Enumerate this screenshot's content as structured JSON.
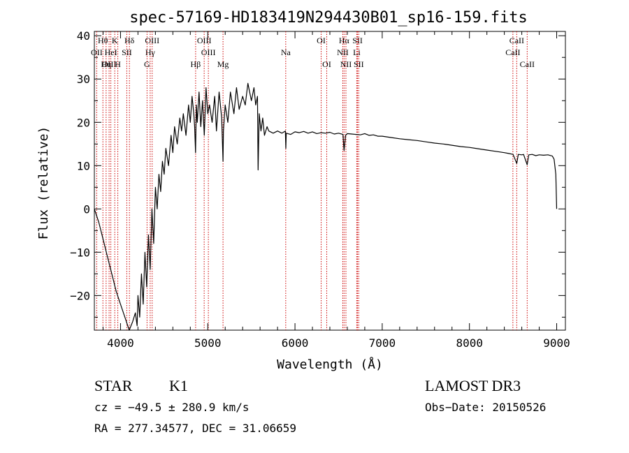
{
  "chart_data": {
    "type": "line",
    "title": "spec-57169-HD183419N294430B01_sp16-159.fits",
    "xlabel": "Wavelength (Å)",
    "ylabel": "Flux (relative)",
    "xlim": [
      3700,
      9100
    ],
    "ylim": [
      -28,
      41
    ],
    "x_ticks": [
      "4000",
      "5000",
      "6000",
      "7000",
      "8000",
      "9000"
    ],
    "x_tick_values": [
      4000,
      5000,
      6000,
      7000,
      8000,
      9000
    ],
    "y_ticks": [
      "40",
      "30",
      "20",
      "10",
      "0",
      "−10",
      "−20"
    ],
    "y_tick_values": [
      40,
      30,
      20,
      10,
      0,
      -10,
      -20
    ],
    "line_color": "#000000",
    "marker_color": "#cc0000",
    "series": [
      {
        "x": [
          3700,
          3750,
          3800,
          3850,
          3900,
          3950,
          4000,
          4050,
          4100,
          4140,
          4170,
          4190,
          4200,
          4220,
          4240,
          4260,
          4280,
          4300,
          4320,
          4340,
          4360,
          4380,
          4400,
          4420,
          4440,
          4460,
          4480,
          4500,
          4520,
          4550,
          4580,
          4600,
          4620,
          4650,
          4680,
          4700,
          4720,
          4750,
          4780,
          4800,
          4820,
          4840,
          4850,
          4860,
          4870,
          4880,
          4900,
          4920,
          4940,
          4960,
          4980,
          5000,
          5020,
          5050,
          5080,
          5100,
          5130,
          5160,
          5175,
          5180,
          5200,
          5230,
          5260,
          5300,
          5330,
          5360,
          5400,
          5430,
          5460,
          5500,
          5530,
          5550,
          5570,
          5577,
          5590,
          5610,
          5630,
          5650,
          5680,
          5700,
          5750,
          5800,
          5850,
          5890,
          5895,
          5900,
          5950,
          6000,
          6050,
          6100,
          6150,
          6200,
          6250,
          6300,
          6350,
          6400,
          6450,
          6500,
          6550,
          6563,
          6580,
          6600,
          6650,
          6700,
          6750,
          6800,
          6850,
          6900,
          6950,
          7000,
          7100,
          7200,
          7300,
          7400,
          7500,
          7600,
          7700,
          7800,
          7900,
          8000,
          8100,
          8200,
          8300,
          8400,
          8450,
          8500,
          8542,
          8560,
          8600,
          8620,
          8662,
          8680,
          8720,
          8760,
          8800,
          8850,
          8900,
          8950,
          8970,
          8990,
          9000
        ],
        "y": [
          0,
          -3,
          -7,
          -11,
          -15,
          -19,
          -22,
          -25,
          -28,
          -26,
          -24,
          -27,
          -20,
          -25,
          -15,
          -22,
          -10,
          -18,
          -6,
          -14,
          0,
          -8,
          5,
          0,
          8,
          4,
          11,
          8,
          14,
          10,
          17,
          13,
          19,
          15,
          21,
          18,
          22,
          17,
          24,
          20,
          26,
          22,
          19,
          13,
          24,
          20,
          27,
          19,
          25,
          17,
          28,
          22,
          24,
          20,
          26,
          18,
          27,
          21,
          11,
          18,
          24,
          20,
          27,
          22,
          28,
          23,
          26,
          24,
          29,
          25,
          28,
          24,
          26,
          9,
          22,
          18,
          21,
          17,
          19,
          18,
          17.5,
          18,
          17.5,
          18,
          14,
          17.5,
          17.2,
          17.8,
          17.6,
          17.9,
          17.5,
          17.8,
          17.4,
          17.6,
          17.5,
          17.7,
          17.3,
          17.5,
          17.2,
          13.5,
          17.0,
          17.4,
          17.3,
          17.2,
          17.1,
          17.4,
          17.0,
          17.1,
          16.8,
          16.8,
          16.5,
          16.2,
          16.0,
          15.8,
          15.5,
          15.2,
          15.0,
          14.7,
          14.4,
          14.2,
          13.9,
          13.6,
          13.3,
          13.0,
          12.8,
          12.6,
          10.5,
          12.6,
          12.5,
          12.6,
          10.2,
          12.5,
          12.6,
          12.3,
          12.5,
          12.4,
          12.5,
          12.2,
          11.5,
          8,
          0
        ]
      }
    ],
    "line_markers": [
      {
        "label": "Hθ",
        "x": 3798,
        "row": 1
      },
      {
        "label": "OII",
        "x": 3727,
        "row": 2
      },
      {
        "label": "OIII",
        "x": 3869,
        "row": 3
      },
      {
        "label": "Hη",
        "x": 3835,
        "row": 3
      },
      {
        "label": "K",
        "x": 3934,
        "row": 1
      },
      {
        "label": "H",
        "x": 3969,
        "row": 3
      },
      {
        "label": "HeI",
        "x": 3889,
        "row": 2
      },
      {
        "label": "SII",
        "x": 4072,
        "row": 2
      },
      {
        "label": "Hδ",
        "x": 4102,
        "row": 1
      },
      {
        "label": "OIII",
        "x": 4363,
        "row": 1
      },
      {
        "label": "Hγ",
        "x": 4340,
        "row": 2
      },
      {
        "label": "G",
        "x": 4304,
        "row": 3
      },
      {
        "label": "Hβ",
        "x": 4861,
        "row": 3
      },
      {
        "label": "OIII",
        "x": 4959,
        "row": 1
      },
      {
        "label": "OIII",
        "x": 5007,
        "row": 2
      },
      {
        "label": "Mg",
        "x": 5175,
        "row": 3
      },
      {
        "label": "Na",
        "x": 5894,
        "row": 2
      },
      {
        "label": "OI",
        "x": 6300,
        "row": 1
      },
      {
        "label": "OI",
        "x": 6364,
        "row": 3
      },
      {
        "label": "Hα",
        "x": 6563,
        "row": 1
      },
      {
        "label": "NII",
        "x": 6548,
        "row": 2
      },
      {
        "label": "NII",
        "x": 6584,
        "row": 3
      },
      {
        "label": "SII",
        "x": 6717,
        "row": 1
      },
      {
        "label": "Li",
        "x": 6708,
        "row": 2
      },
      {
        "label": "SII",
        "x": 6731,
        "row": 3
      },
      {
        "label": "CaII",
        "x": 8542,
        "row": 1
      },
      {
        "label": "CaII",
        "x": 8498,
        "row": 2
      },
      {
        "label": "CaII",
        "x": 8662,
        "row": 3
      }
    ],
    "grid": false,
    "legend": "none"
  },
  "info": {
    "class": "STAR",
    "subclass": "K1",
    "survey": "LAMOST DR3",
    "cz": "cz = −49.5 ± 280.9 km/s",
    "obs_date": "Obs−Date: 20150526",
    "coords": "RA = 277.34577, DEC =  31.06659"
  }
}
